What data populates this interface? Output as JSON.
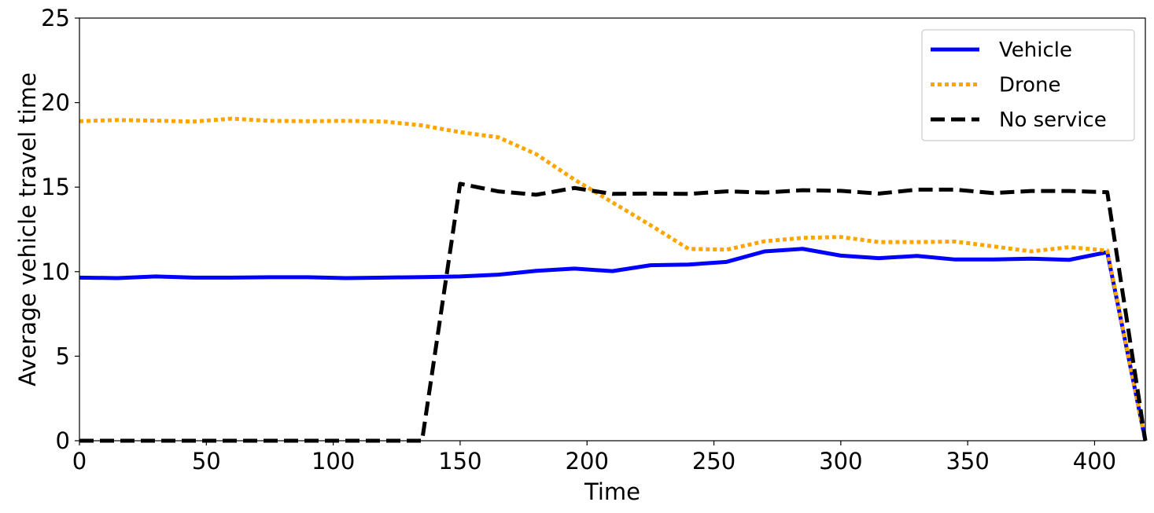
{
  "chart_data": {
    "type": "line",
    "xlabel": "Time",
    "ylabel": "Average vehicle travel time",
    "xlim": [
      0,
      420
    ],
    "ylim": [
      0,
      25
    ],
    "xticks": [
      0,
      50,
      100,
      150,
      200,
      250,
      300,
      350,
      400
    ],
    "yticks": [
      0,
      5,
      10,
      15,
      20,
      25
    ],
    "grid": false,
    "legend_position": "top-right",
    "x": [
      0,
      15,
      30,
      45,
      60,
      75,
      90,
      105,
      120,
      135,
      150,
      165,
      180,
      195,
      210,
      225,
      240,
      255,
      270,
      285,
      300,
      315,
      330,
      345,
      360,
      375,
      390,
      405,
      420
    ],
    "series": [
      {
        "name": "Vehicle",
        "color": "#0000ff",
        "style": "solid",
        "values": [
          9.65,
          9.62,
          9.72,
          9.65,
          9.65,
          9.67,
          9.67,
          9.62,
          9.65,
          9.68,
          9.72,
          9.82,
          10.05,
          10.18,
          10.03,
          10.38,
          10.42,
          10.58,
          11.2,
          11.35,
          10.95,
          10.8,
          10.93,
          10.72,
          10.72,
          10.77,
          10.7,
          11.15,
          0.0
        ]
      },
      {
        "name": "Drone",
        "color": "#ffa500",
        "style": "dotted",
        "values": [
          18.9,
          18.97,
          18.93,
          18.88,
          19.05,
          18.92,
          18.9,
          18.92,
          18.88,
          18.65,
          18.25,
          17.95,
          16.95,
          15.45,
          14.1,
          12.75,
          11.35,
          11.3,
          11.8,
          12.0,
          12.05,
          11.75,
          11.75,
          11.78,
          11.5,
          11.2,
          11.45,
          11.25,
          0.0
        ]
      },
      {
        "name": "No service",
        "color": "#000000",
        "style": "dashed",
        "values": [
          0.0,
          0.0,
          0.0,
          0.0,
          0.0,
          0.0,
          0.0,
          0.0,
          0.0,
          0.0,
          15.2,
          14.75,
          14.55,
          14.95,
          14.6,
          14.62,
          14.6,
          14.75,
          14.68,
          14.82,
          14.78,
          14.62,
          14.85,
          14.85,
          14.65,
          14.77,
          14.77,
          14.7,
          0.0
        ]
      }
    ]
  }
}
